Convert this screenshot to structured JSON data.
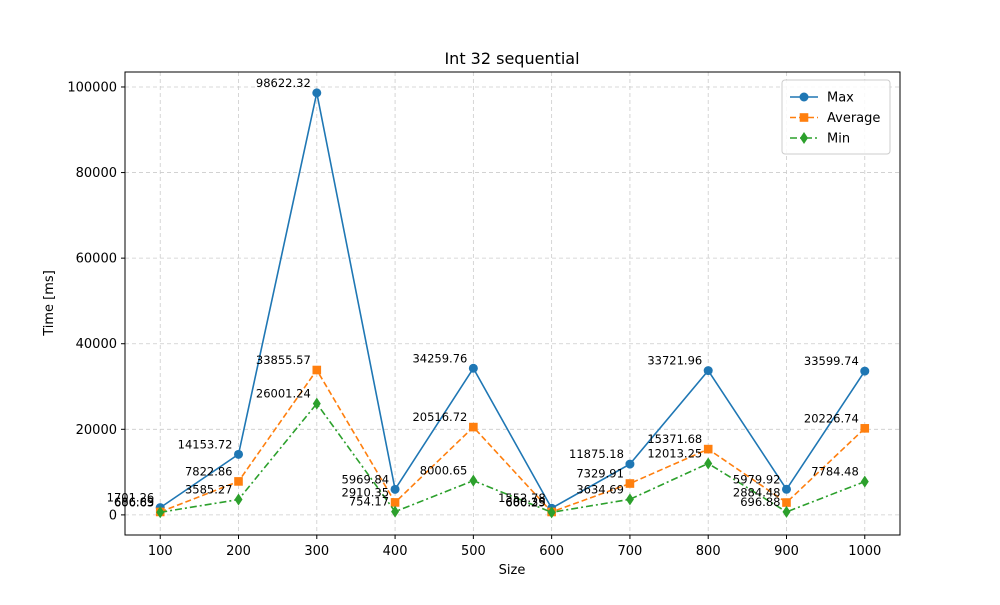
{
  "chart_data": {
    "type": "line",
    "title": "Int 32 sequential",
    "xlabel": "Size",
    "ylabel": "Time [ms]",
    "x": [
      100,
      200,
      300,
      400,
      500,
      600,
      700,
      800,
      900,
      1000
    ],
    "x_ticks": [
      "100",
      "200",
      "300",
      "400",
      "500",
      "600",
      "700",
      "800",
      "900",
      "1000"
    ],
    "y_ticks": [
      "0",
      "20000",
      "40000",
      "60000",
      "80000",
      "100000"
    ],
    "xlim": [
      55,
      1045
    ],
    "ylim": [
      -4700,
      103500
    ],
    "grid": true,
    "legend_position": "top-right",
    "series": [
      {
        "name": "Max",
        "color": "#1f77b4",
        "marker": "circle",
        "line_style": "solid",
        "values": [
          1701.26,
          14153.72,
          98622.32,
          5969.84,
          34259.76,
          1552.78,
          11875.18,
          33721.96,
          5979.92,
          33599.74
        ],
        "labels": [
          "1701.26",
          "14153.72",
          "98622.32",
          "5969.84",
          "34259.76",
          "1552.78",
          "11875.18",
          "33721.96",
          "5979.92",
          "33599.74"
        ]
      },
      {
        "name": "Average",
        "color": "#ff7f0e",
        "marker": "square",
        "line_style": "dashed",
        "values": [
          686.89,
          7822.86,
          33855.57,
          2910.35,
          20516.72,
          680.35,
          7329.91,
          15371.68,
          2884.48,
          20226.74
        ],
        "labels": [
          "686.89",
          "7822.86",
          "33855.57",
          "2910.35",
          "20516.72",
          "680.35",
          "7329.91",
          "15371.68",
          "2884.48",
          "20226.74"
        ]
      },
      {
        "name": "Min",
        "color": "#2ca02c",
        "marker": "diamond",
        "line_style": "dashdot",
        "values": [
          606.63,
          3585.27,
          26001.24,
          754.17,
          8000.65,
          600.29,
          3634.69,
          12013.25,
          696.88,
          7784.48
        ],
        "labels": [
          "606.63",
          "3585.27",
          "26001.24",
          "754.17",
          "8000.65",
          "600.29",
          "3634.69",
          "12013.25",
          "696.88",
          "7784.48"
        ]
      }
    ]
  }
}
